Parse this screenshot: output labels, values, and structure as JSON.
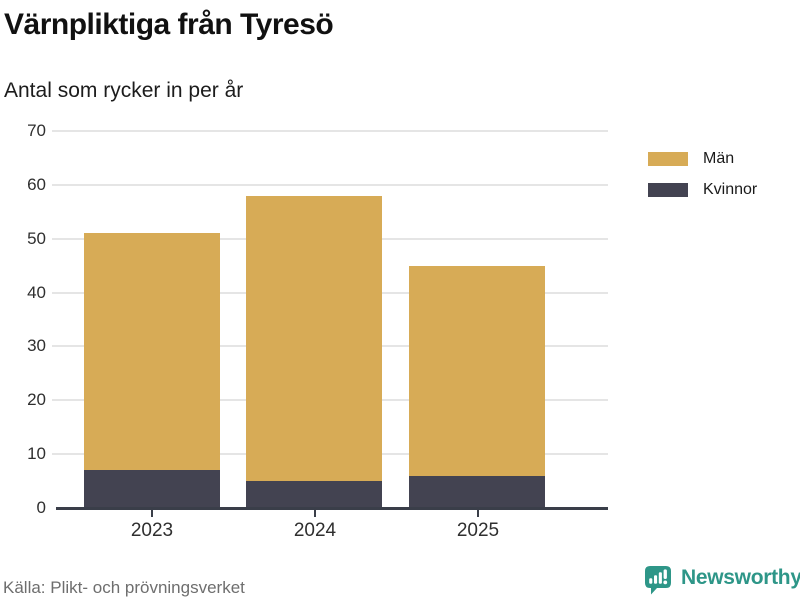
{
  "header": {
    "title": "Värnpliktiga från Tyresö",
    "subtitle": "Antal som rycker in per år"
  },
  "chart_data": {
    "type": "bar",
    "stacked": true,
    "title": "Värnpliktiga från Tyresö",
    "subtitle": "Antal som rycker in per år",
    "categories": [
      "2023",
      "2024",
      "2025"
    ],
    "series": [
      {
        "name": "Män",
        "color": "#d7ab56",
        "values": [
          44,
          53,
          39
        ]
      },
      {
        "name": "Kvinnor",
        "color": "#434351",
        "values": [
          7,
          5,
          6
        ]
      }
    ],
    "totals": [
      51,
      58,
      45
    ],
    "xlabel": "",
    "ylabel": "",
    "ylim": [
      0,
      70
    ],
    "yticks": [
      0,
      10,
      20,
      30,
      40,
      50,
      60,
      70
    ],
    "grid": true,
    "legend_position": "top-right"
  },
  "colors": {
    "men": "#d7ab56",
    "women": "#434351",
    "grid": "#e5e5e5",
    "axis": "#3a3e49",
    "brand_teal": "#2e9688"
  },
  "footer": {
    "source": "Källa: Plikt- och prövningsverket",
    "brand": "Newsworthy"
  }
}
